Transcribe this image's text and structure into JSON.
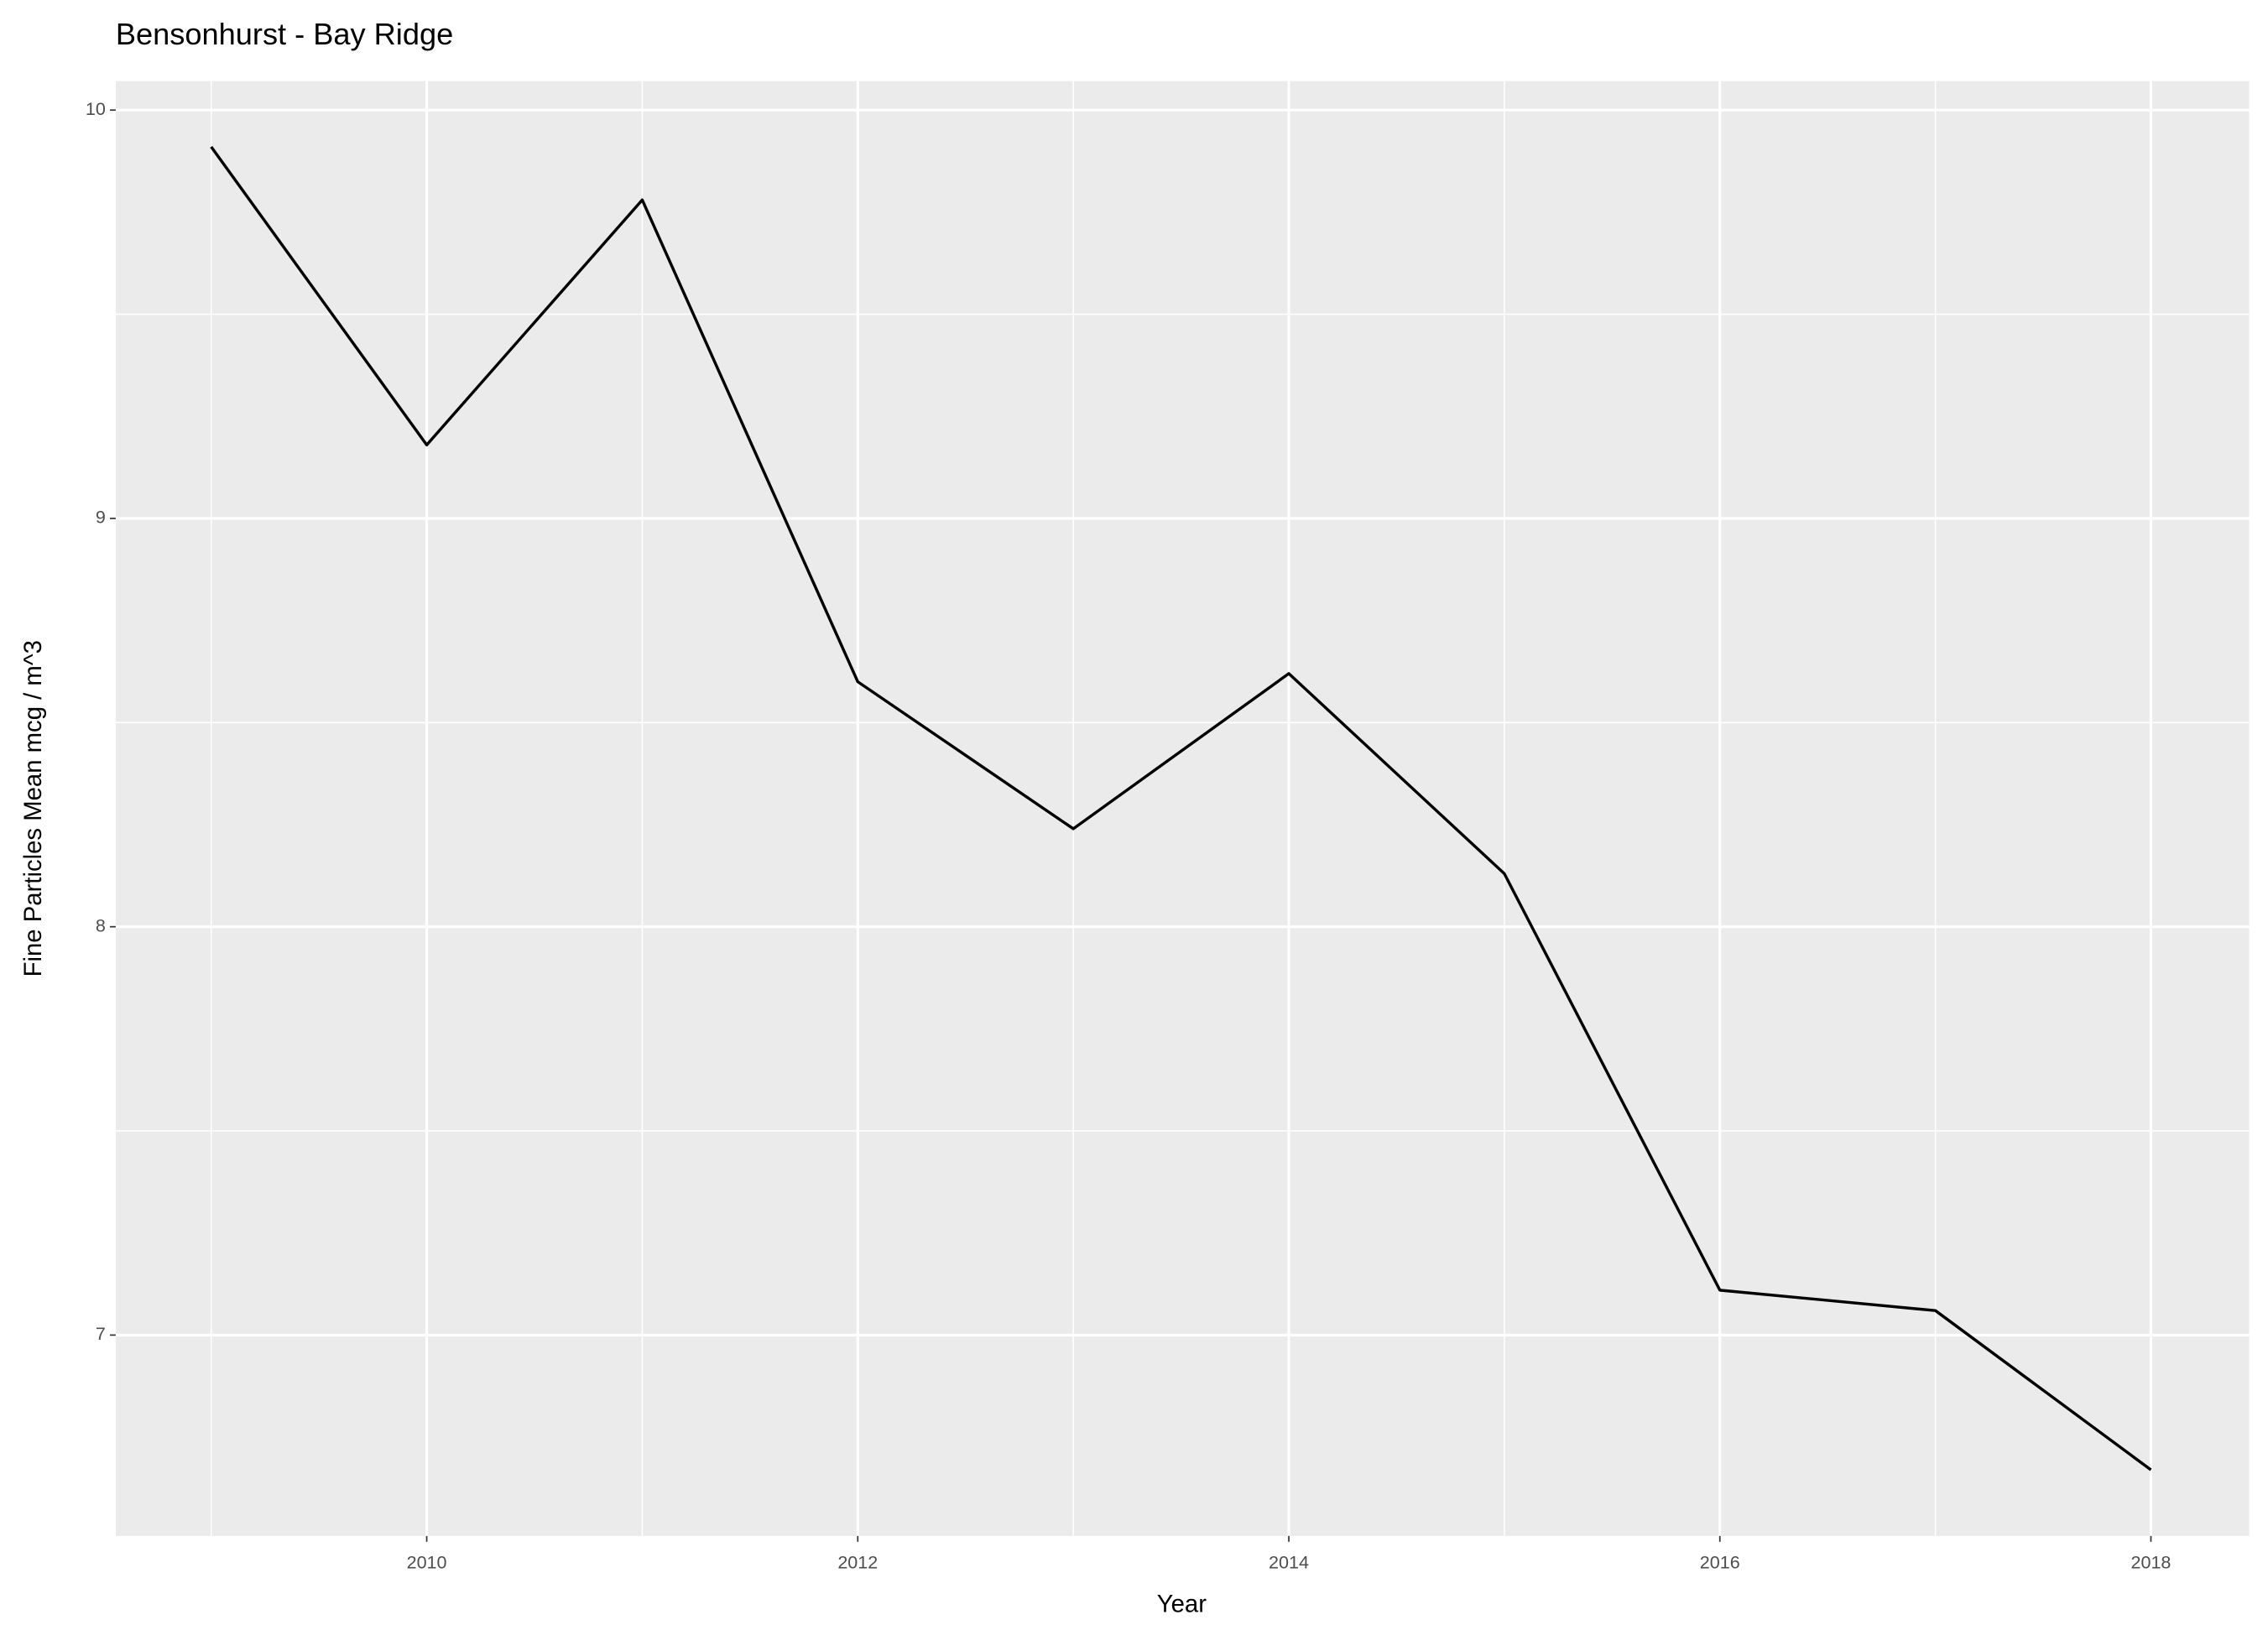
{
  "chart_data": {
    "type": "line",
    "title": "Bensonhurst - Bay Ridge",
    "x_label": "Year",
    "y_label": "Fine Particles Mean mcg / m^3",
    "x": [
      2009,
      2010,
      2011,
      2012,
      2013,
      2014,
      2015,
      2016,
      2017,
      2018
    ],
    "series": [
      {
        "name": "Fine Particles Mean",
        "color": "#000000",
        "values": [
          9.91,
          9.18,
          9.78,
          8.6,
          8.24,
          8.62,
          8.13,
          7.11,
          7.06,
          6.67
        ]
      }
    ],
    "xlim": [
      2008.557,
      2018.456
    ],
    "xticks": [
      2010,
      2012,
      2014,
      2016,
      2018
    ],
    "minor_xticks": [
      2009,
      2011,
      2013,
      2015,
      2017
    ],
    "ylim": [
      6.508,
      10.071
    ],
    "yticks": [
      7,
      8,
      9,
      10
    ],
    "minor_yticks": [
      7.5,
      8.5,
      9.5
    ],
    "grid": true,
    "panel_color": "#ebebeb"
  }
}
